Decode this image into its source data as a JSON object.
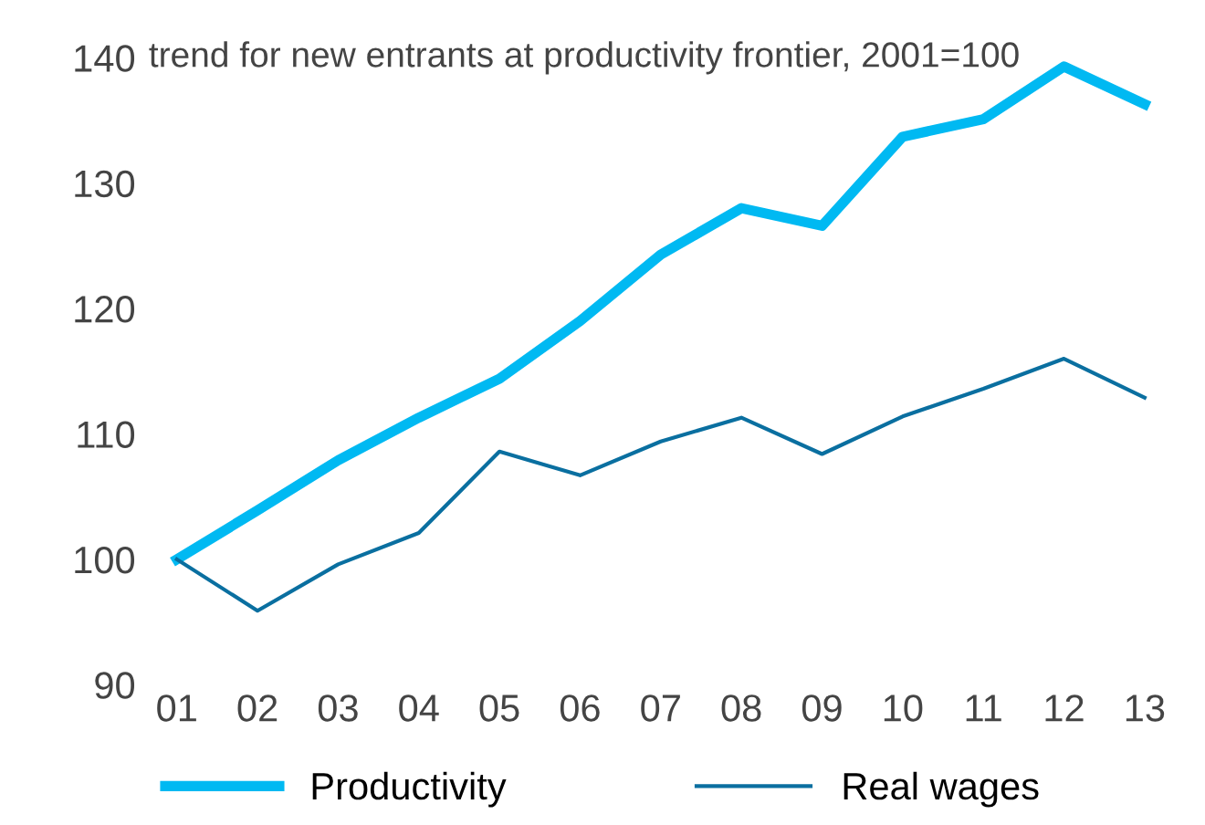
{
  "chart_data": {
    "type": "line",
    "title": "trend for new entrants at productivity frontier, 2001=100",
    "categories": [
      "01",
      "02",
      "03",
      "04",
      "05",
      "06",
      "07",
      "08",
      "09",
      "10",
      "11",
      "12",
      "13"
    ],
    "series": [
      {
        "name": "Productivity",
        "color": "#00b9f2",
        "values": [
          100,
          103.9,
          107.9,
          111.3,
          114.4,
          119,
          124.3,
          128,
          126.6,
          133.7,
          135.1,
          139.3,
          136.3
        ]
      },
      {
        "name": "Real wages",
        "color": "#0a6fa0",
        "values": [
          100,
          95.9,
          99.6,
          102.1,
          108.6,
          106.7,
          109.4,
          111.3,
          108.4,
          111.4,
          113.6,
          116,
          112.9
        ]
      }
    ],
    "ylim": [
      90,
      140
    ],
    "yticks": [
      90,
      100,
      110,
      120,
      130,
      140
    ],
    "grid": false,
    "legend": "bottom",
    "marker": "none",
    "line_style": "solid"
  }
}
